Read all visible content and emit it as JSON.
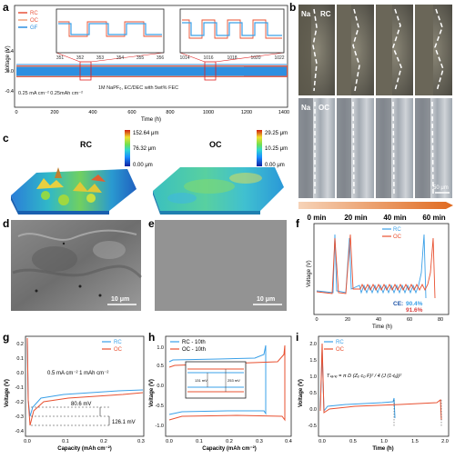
{
  "panel_letters": [
    "a",
    "b",
    "c",
    "d",
    "e",
    "f",
    "g",
    "h",
    "i"
  ],
  "colors": {
    "rc": "#2e8fe0",
    "oc": "#e8533a",
    "gf": "#f0a07c",
    "inset_blue": "#3aa0e8",
    "inset_red": "#e85030",
    "blue_dark": "#1a52a6",
    "red_text": "#d94040"
  },
  "panel_a": {
    "ylabel": "Voltage (V)",
    "xlabel": "Time (h)",
    "legend": [
      "RC",
      "OC",
      "GF"
    ],
    "note_left": "0.25 mA cm⁻²  0.25mAh cm⁻²",
    "note_mid": "1M NaPF₆, EC/DEC with 5wt% FEC",
    "xticks": [
      "0",
      "200",
      "400",
      "600",
      "800",
      "1000",
      "1200",
      "1400"
    ],
    "yticks": [
      "0.4",
      "0.0",
      "-0.4"
    ],
    "inset1_ticks": [
      "351",
      "352",
      "353",
      "354",
      "355",
      "356"
    ],
    "inset2_ticks": [
      "1014",
      "1016",
      "1018",
      "1020",
      "1022"
    ]
  },
  "panel_b": {
    "row1_label": "RC",
    "row2_label": "OC",
    "na": "Na",
    "times": [
      "0 min",
      "20 min",
      "40 min",
      "60 min"
    ],
    "scale": "50 μm"
  },
  "panel_c": {
    "rc_label": "RC",
    "oc_label": "OC",
    "rc_scale": [
      "152.64 μm",
      "76.32 μm",
      "0.00 μm"
    ],
    "oc_scale": [
      "29.25 μm",
      "10.25 μm",
      "0.00 μm"
    ]
  },
  "panel_d": {
    "scale": "10 μm"
  },
  "panel_e": {
    "scale": "10 μm"
  },
  "panel_f": {
    "ylabel": "Voltage (V)",
    "xlabel": "Time (h)",
    "legend": [
      "RC",
      "OC"
    ],
    "ce_label": "CE:",
    "ce_rc": "90.4%",
    "ce_oc": "91.6%",
    "xticks": [
      "0",
      "20",
      "40",
      "60",
      "80"
    ]
  },
  "panel_g": {
    "ylabel": "Voltage (V)",
    "xlabel": "Capacity (mAh cm⁻²)",
    "legend": [
      "RC",
      "OC"
    ],
    "note": "0.5 mA cm⁻²  1 mAh cm⁻²",
    "ann1": "80.6 mV",
    "ann2": "126.1 mV",
    "xticks": [
      "0.0",
      "0.1",
      "0.2",
      "0.3"
    ],
    "yticks": [
      "0.2",
      "0.1",
      "0.0",
      "-0.1",
      "-0.2",
      "-0.3",
      "-0.4"
    ]
  },
  "panel_h": {
    "ylabel": "Voltage (V)",
    "xlabel": "Capacity (mAh cm⁻²)",
    "legend": [
      "RC - 10th",
      "OC - 10th"
    ],
    "inset_ann1": "131 mV",
    "inset_ann2": "253 mV",
    "xticks": [
      "0.0",
      "0.1",
      "0.2",
      "0.3",
      "0.4"
    ],
    "yticks": [
      "1.0",
      "0.5",
      "0.0",
      "-0.5",
      "-1.0"
    ]
  },
  "panel_i": {
    "ylabel": "Voltage (V)",
    "xlabel": "Time (h)",
    "legend": [
      "RC",
      "OC"
    ],
    "equation": "Tₛₐₙₑ = π D (Zₑ c₀ F)² / 4 (J (1-tₐ))²",
    "xticks": [
      "0.0",
      "0.5",
      "1.0",
      "1.5",
      "2.0"
    ],
    "yticks": [
      "2.0",
      "1.5",
      "1.0",
      "0.5",
      "0.0",
      "-0.5"
    ]
  },
  "chart_data": [
    {
      "type": "line",
      "title": "",
      "xlabel": "Time (h)",
      "ylabel": "Voltage (V)",
      "xlim": [
        0,
        1400
      ],
      "ylim": [
        -0.5,
        0.5
      ],
      "series": [
        {
          "name": "RC",
          "x": [
            0,
            1400
          ],
          "y": [
            0,
            0
          ]
        },
        {
          "name": "OC",
          "x": [
            0,
            1400
          ],
          "y": [
            0,
            0
          ]
        },
        {
          "name": "GF",
          "x": [
            0,
            1400
          ],
          "y": [
            0,
            0
          ]
        }
      ]
    },
    {
      "type": "line",
      "title": "",
      "xlabel": "Time (h)",
      "ylabel": "Voltage (V)",
      "xlim": [
        0,
        85
      ],
      "series": [
        {
          "name": "RC",
          "ce": "90.4%"
        },
        {
          "name": "OC",
          "ce": "91.6%"
        }
      ]
    },
    {
      "type": "line",
      "title": "",
      "xlabel": "Capacity (mAh cm⁻²)",
      "ylabel": "Voltage (V)",
      "xlim": [
        0,
        0.3
      ],
      "ylim": [
        -0.4,
        0.2
      ],
      "series": [
        {
          "name": "RC",
          "nucleation_overpotential_mV": 80.6
        },
        {
          "name": "OC",
          "nucleation_overpotential_mV": 126.1
        }
      ]
    },
    {
      "type": "line",
      "title": "",
      "xlabel": "Capacity (mAh cm⁻²)",
      "ylabel": "Voltage (V)",
      "xlim": [
        0,
        0.4
      ],
      "ylim": [
        -1.0,
        1.0
      ],
      "series": [
        {
          "name": "RC - 10th",
          "overpotential_mV": 131
        },
        {
          "name": "OC - 10th",
          "overpotential_mV": 253
        }
      ]
    },
    {
      "type": "line",
      "title": "",
      "xlabel": "Time (h)",
      "ylabel": "Voltage (V)",
      "xlim": [
        0,
        2.0
      ],
      "ylim": [
        -0.5,
        2.0
      ],
      "series": [
        {
          "name": "RC"
        },
        {
          "name": "OC"
        }
      ]
    }
  ]
}
